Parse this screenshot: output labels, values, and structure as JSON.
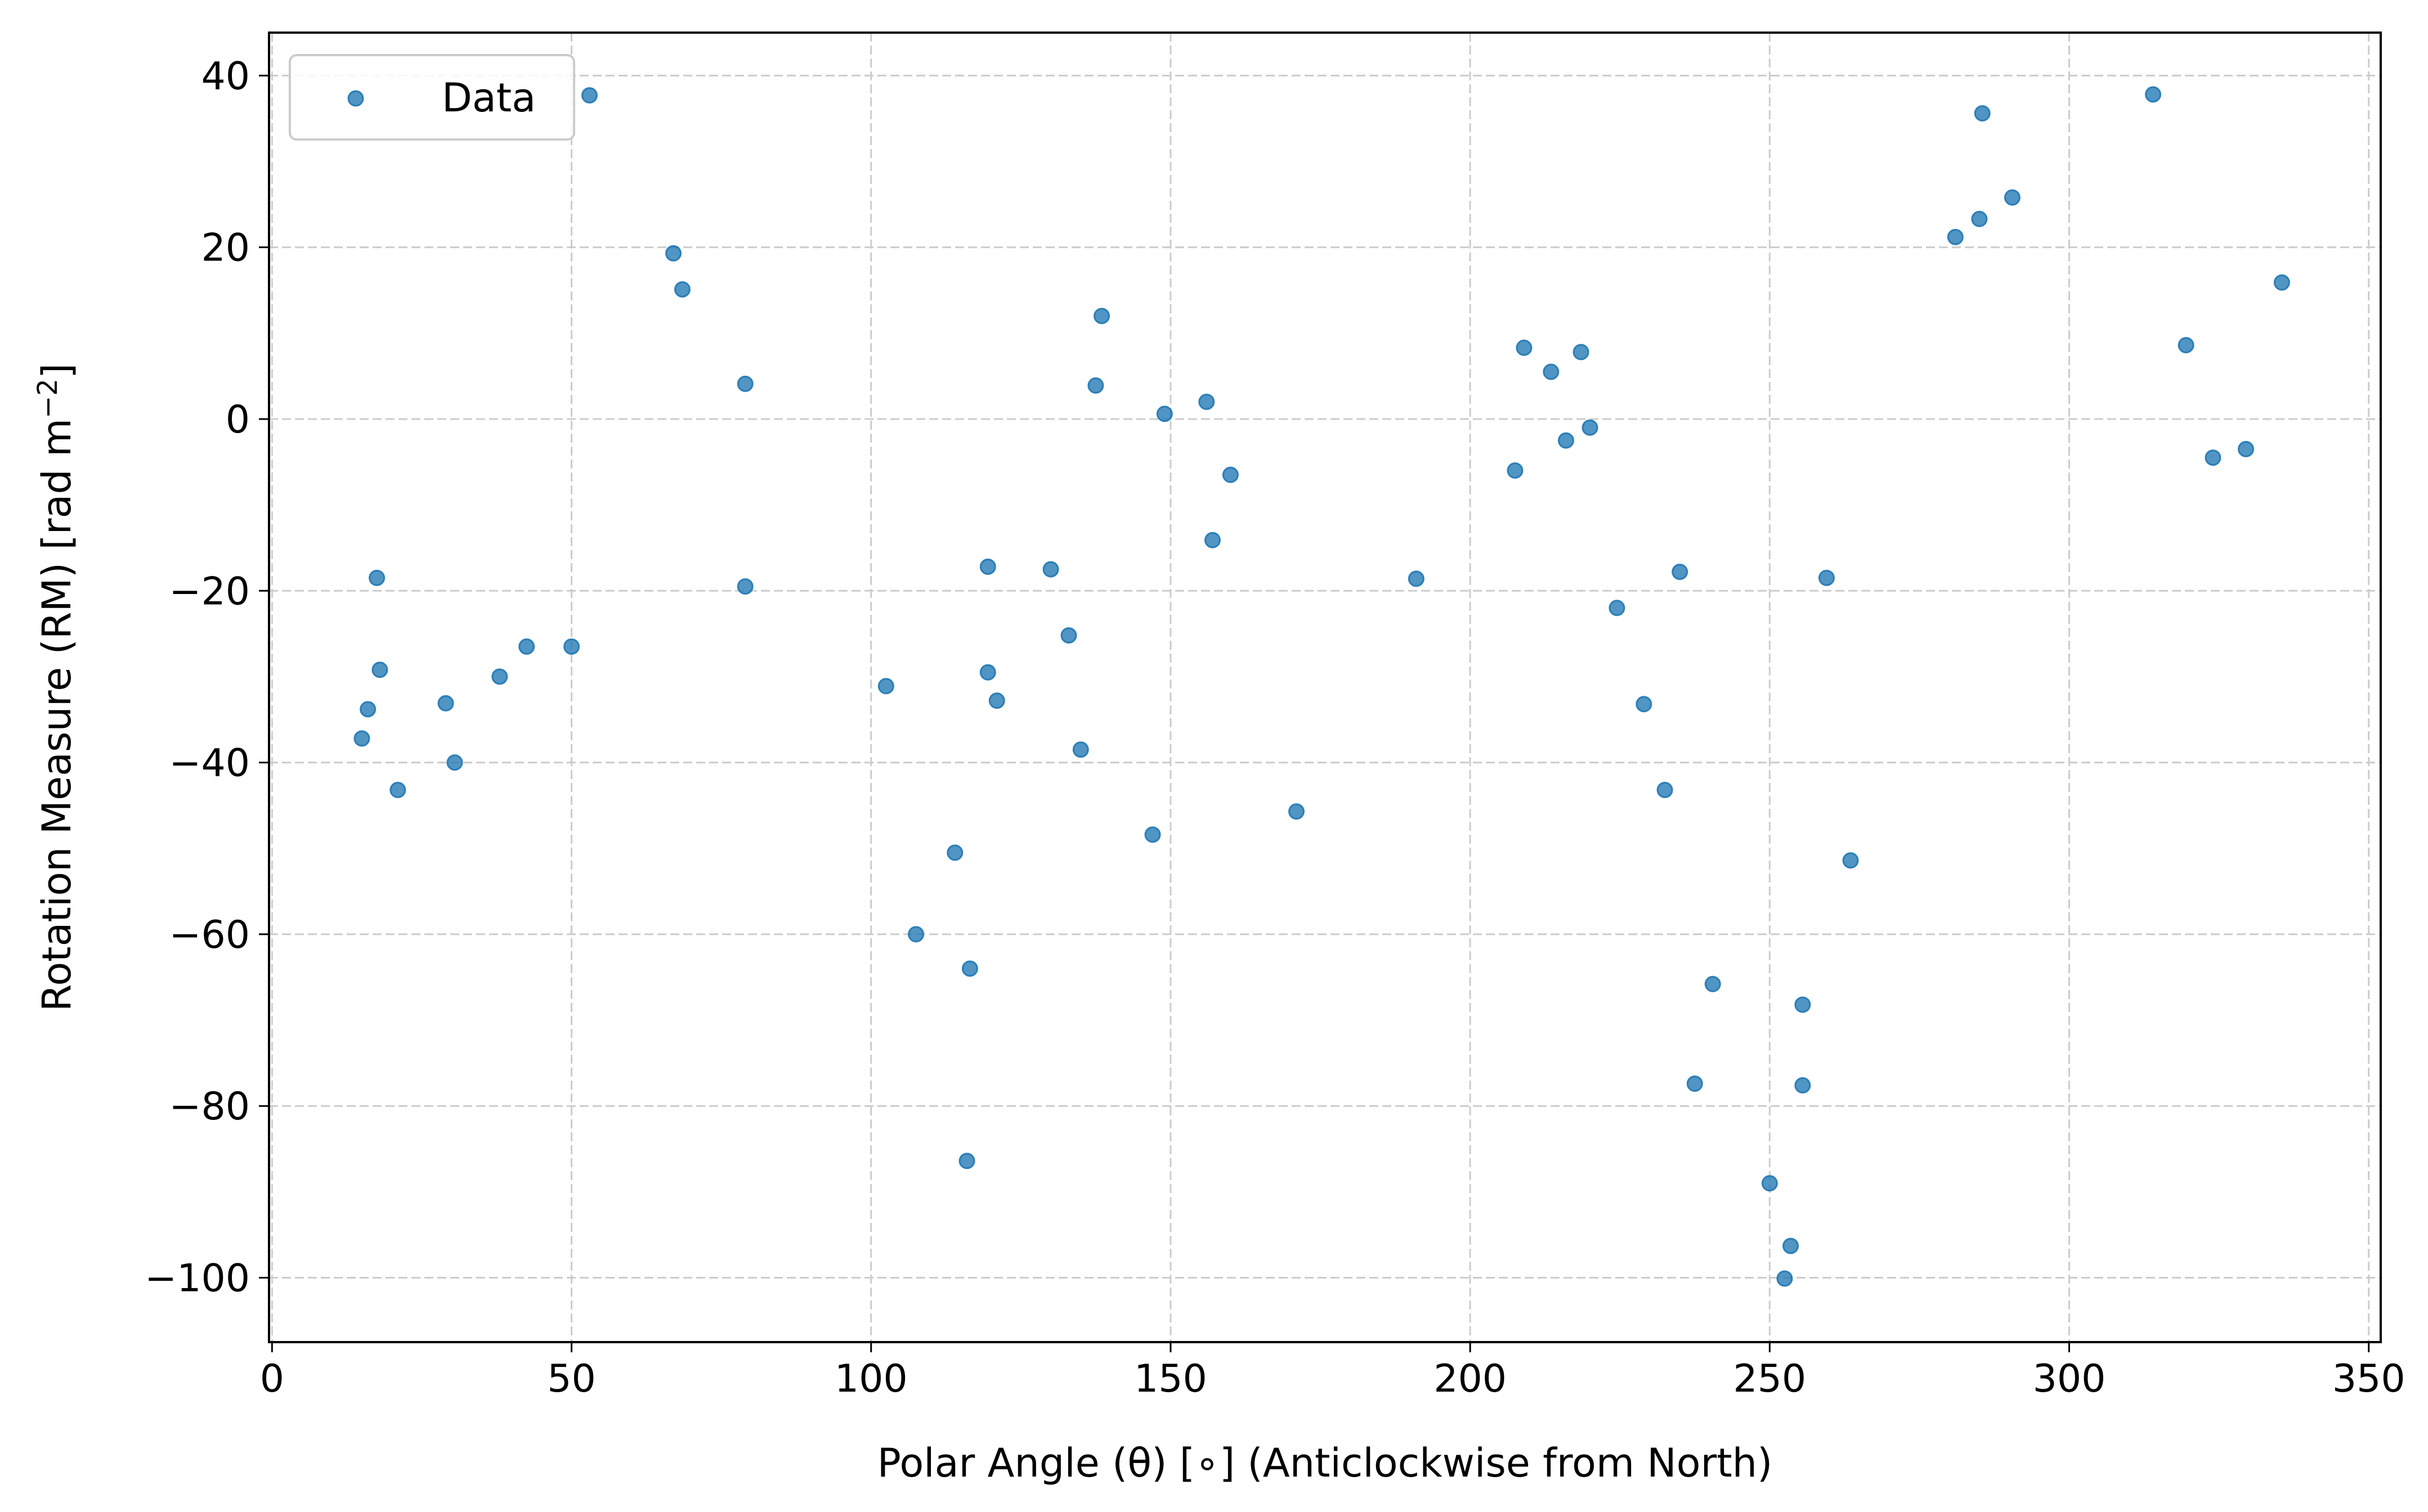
{
  "chart_data": {
    "type": "scatter",
    "title": "",
    "xlabel": "Polar Angle (θ) [∘] (Anticlockwise from North)",
    "ylabel": "Rotation Measure (RM) [rad m",
    "ylabel_unit_exponent": "−2",
    "ylabel_close": "]",
    "xlim": [
      -0.5,
      352
    ],
    "ylim": [
      -107.5,
      45
    ],
    "xticks": [
      0,
      50,
      100,
      150,
      200,
      250,
      300,
      350
    ],
    "yticks": [
      40,
      20,
      0,
      -20,
      -40,
      -60,
      -80,
      -100
    ],
    "xtick_labels": [
      "0",
      "50",
      "100",
      "150",
      "200",
      "250",
      "300",
      "350"
    ],
    "ytick_labels": [
      "40",
      "20",
      "0",
      "−20",
      "−40",
      "−60",
      "−80",
      "−100"
    ],
    "grid": true,
    "legend": {
      "position": "top-left",
      "entries": [
        "Data"
      ]
    },
    "series": [
      {
        "name": "Data",
        "color": "#1f77b4",
        "points": [
          [
            15,
            -37.2
          ],
          [
            16,
            -33.8
          ],
          [
            17.5,
            -18.5
          ],
          [
            18,
            -29.2
          ],
          [
            21,
            -43.2
          ],
          [
            29,
            -33.1
          ],
          [
            30.5,
            -40.0
          ],
          [
            38,
            -30.0
          ],
          [
            42.5,
            -26.5
          ],
          [
            50,
            -26.5
          ],
          [
            53,
            37.7
          ],
          [
            67,
            19.3
          ],
          [
            68.5,
            15.1
          ],
          [
            79,
            4.1
          ],
          [
            79,
            -19.5
          ],
          [
            102.5,
            -31.1
          ],
          [
            107.5,
            -60.0
          ],
          [
            114,
            -50.5
          ],
          [
            116,
            -86.4
          ],
          [
            116.5,
            -64.0
          ],
          [
            119.5,
            -17.2
          ],
          [
            119.5,
            -29.5
          ],
          [
            121,
            -32.8
          ],
          [
            130,
            -17.5
          ],
          [
            133,
            -25.2
          ],
          [
            135,
            -38.5
          ],
          [
            137.5,
            3.9
          ],
          [
            138.5,
            12.0
          ],
          [
            147,
            -48.4
          ],
          [
            149,
            0.6
          ],
          [
            156,
            2.0
          ],
          [
            157,
            -14.1
          ],
          [
            160,
            -6.5
          ],
          [
            171,
            -45.7
          ],
          [
            191,
            -18.6
          ],
          [
            207.5,
            -6.0
          ],
          [
            209,
            8.3
          ],
          [
            213.5,
            5.5
          ],
          [
            216,
            -2.5
          ],
          [
            218.5,
            7.8
          ],
          [
            220,
            -1.0
          ],
          [
            224.5,
            -22.0
          ],
          [
            229,
            -33.2
          ],
          [
            232.5,
            -43.2
          ],
          [
            235,
            -17.8
          ],
          [
            237.5,
            -77.4
          ],
          [
            240.5,
            -65.8
          ],
          [
            250,
            -89.0
          ],
          [
            252.5,
            -100.1
          ],
          [
            253.5,
            -96.3
          ],
          [
            255.5,
            -68.2
          ],
          [
            255.5,
            -77.6
          ],
          [
            259.5,
            -18.5
          ],
          [
            263.5,
            -51.4
          ],
          [
            281,
            21.2
          ],
          [
            285,
            23.3
          ],
          [
            285.5,
            35.6
          ],
          [
            290.5,
            25.8
          ],
          [
            314,
            37.8
          ],
          [
            319.5,
            8.6
          ],
          [
            324,
            -4.5
          ],
          [
            329.5,
            -3.5
          ],
          [
            335.5,
            15.9
          ]
        ]
      }
    ]
  }
}
